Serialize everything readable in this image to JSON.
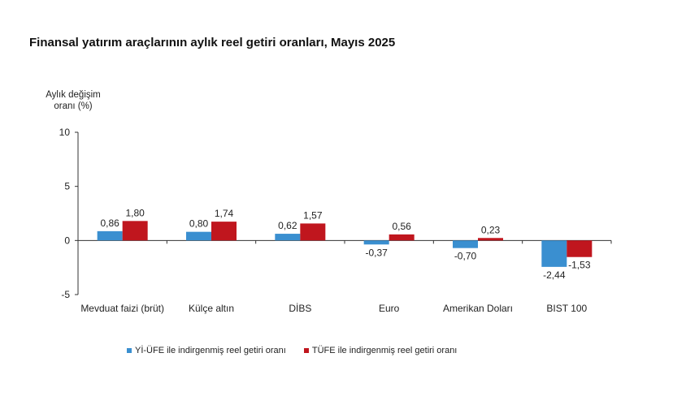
{
  "chart_data": {
    "type": "bar",
    "title": "Finansal yatırım araçlarının aylık reel getiri oranları, Mayıs 2025",
    "ylabel_lines": [
      "Aylık değişim",
      "oranı (%)"
    ],
    "ylim": [
      -5,
      10
    ],
    "yticks": [
      "10",
      "5",
      "0",
      "-5"
    ],
    "ytick_values": [
      10,
      5,
      0,
      -5
    ],
    "categories": [
      "Mevduat faizi (brüt)",
      "Külçe altın",
      "DİBS",
      "Euro",
      "Amerikan Doları",
      "BIST 100"
    ],
    "series": [
      {
        "name": "Yİ-ÜFE ile indirgenmiş reel getiri oranı",
        "color": "#3a8fd0",
        "values": [
          0.86,
          0.8,
          0.62,
          -0.37,
          -0.7,
          -2.44
        ],
        "labels": [
          "0,86",
          "0,80",
          "0,62",
          "-0,37",
          "-0,70",
          "-2,44"
        ]
      },
      {
        "name": "TÜFE ile indirgenmiş reel getiri oranı",
        "color": "#c0161e",
        "values": [
          1.8,
          1.74,
          1.57,
          0.56,
          0.23,
          -1.53
        ],
        "labels": [
          "1,80",
          "1,74",
          "1,57",
          "0,56",
          "0,23",
          "-1,53"
        ]
      }
    ]
  }
}
